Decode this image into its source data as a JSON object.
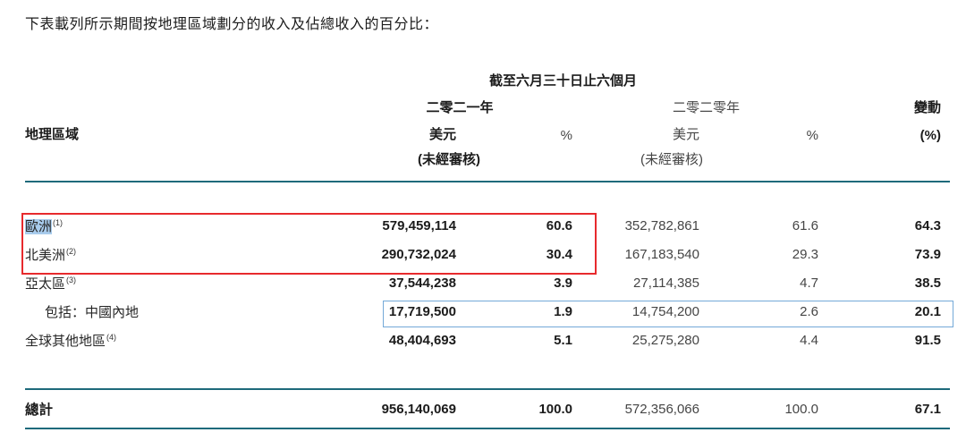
{
  "intro": "下表載列所示期間按地理區域劃分的收入及佔總收入的百分比：",
  "table": {
    "period_header": "截至六月三十日止六個月",
    "year_2021": "二零二一年",
    "year_2020": "二零二零年",
    "change_header": "變動",
    "region_header": "地理區域",
    "usd_header_2021": "美元",
    "pct_header_2021": "%",
    "usd_header_2020": "美元",
    "pct_header_2020": "%",
    "change_pct_header": "(%)",
    "unaudited_2021": "(未經審核)",
    "unaudited_2020": "(未經審核)",
    "rows": [
      {
        "region": "歐洲",
        "note": "(1)",
        "usd_2021": "579,459,114",
        "pct_2021": "60.6",
        "usd_2020": "352,782,861",
        "pct_2020": "61.6",
        "change": "64.3"
      },
      {
        "region": "北美洲",
        "note": "(2)",
        "usd_2021": "290,732,024",
        "pct_2021": "30.4",
        "usd_2020": "167,183,540",
        "pct_2020": "29.3",
        "change": "73.9"
      },
      {
        "region": "亞太區",
        "note": "(3)",
        "usd_2021": "37,544,238",
        "pct_2021": "3.9",
        "usd_2020": "27,114,385",
        "pct_2020": "4.7",
        "change": "38.5"
      },
      {
        "region": "包括：中國內地",
        "note": "",
        "usd_2021": "17,719,500",
        "pct_2021": "1.9",
        "usd_2020": "14,754,200",
        "pct_2020": "2.6",
        "change": "20.1"
      },
      {
        "region": "全球其他地區",
        "note": "(4)",
        "usd_2021": "48,404,693",
        "pct_2021": "5.1",
        "usd_2020": "25,275,280",
        "pct_2020": "4.4",
        "change": "91.5"
      }
    ],
    "total": {
      "label": "總計",
      "usd_2021": "956,140,069",
      "pct_2021": "100.0",
      "usd_2020": "572,356,066",
      "pct_2020": "100.0",
      "change": "67.1"
    }
  },
  "colors": {
    "rule": "#1e6a7b",
    "red_box": "#e72a2d",
    "blue_box": "#74a9d8",
    "selection": "#a8cbec"
  }
}
